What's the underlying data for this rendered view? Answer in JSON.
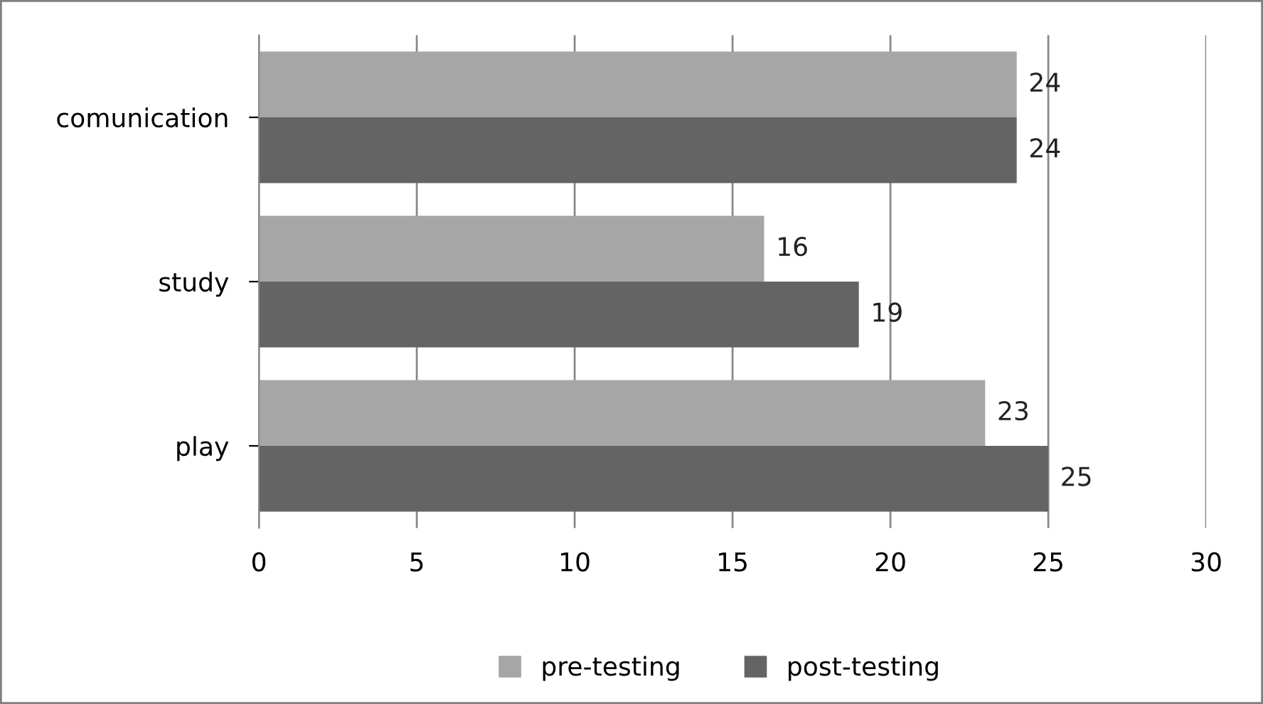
{
  "chart_data": {
    "type": "bar",
    "orientation": "horizontal",
    "categories": [
      "comunication",
      "study",
      "play"
    ],
    "series": [
      {
        "name": "pre-testing",
        "color": "#a6a6a6",
        "values": [
          24,
          16,
          23
        ]
      },
      {
        "name": "post-testing",
        "color": "#646464",
        "values": [
          24,
          19,
          25
        ]
      }
    ],
    "xlim": [
      0,
      30
    ],
    "xticks": [
      0,
      5,
      10,
      15,
      20,
      25,
      30
    ],
    "grid": "x",
    "legend": "bottom",
    "data_labels": true
  }
}
